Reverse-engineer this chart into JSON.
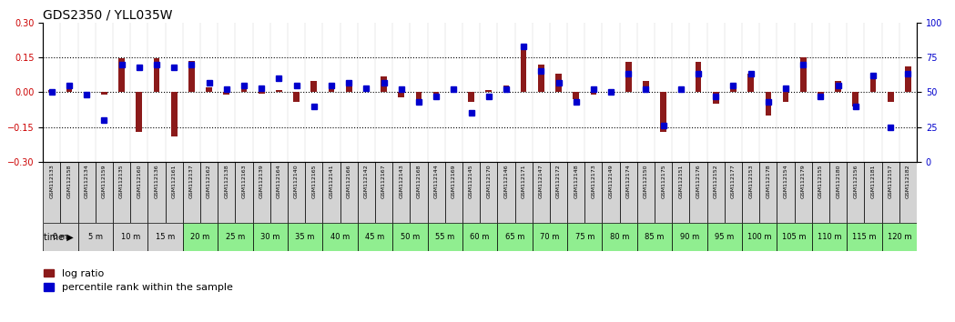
{
  "title": "GDS2350 / YLL035W",
  "xlabels": [
    "GSM112133",
    "GSM112158",
    "GSM112134",
    "GSM112159",
    "GSM112135",
    "GSM112160",
    "GSM112136",
    "GSM112161",
    "GSM112137",
    "GSM112162",
    "GSM112138",
    "GSM112163",
    "GSM112139",
    "GSM112164",
    "GSM112140",
    "GSM112165",
    "GSM112141",
    "GSM112166",
    "GSM112142",
    "GSM112167",
    "GSM112143",
    "GSM112168",
    "GSM112144",
    "GSM112169",
    "GSM112145",
    "GSM112170",
    "GSM112146",
    "GSM112171",
    "GSM112147",
    "GSM112172",
    "GSM112148",
    "GSM112173",
    "GSM112149",
    "GSM112174",
    "GSM112150",
    "GSM112175",
    "GSM112151",
    "GSM112176",
    "GSM112152",
    "GSM112177",
    "GSM112153",
    "GSM112178",
    "GSM112154",
    "GSM112179",
    "GSM112155",
    "GSM112180",
    "GSM112156",
    "GSM112181",
    "GSM112157",
    "GSM112182"
  ],
  "time_labels": [
    "0 m",
    "5 m",
    "10 m",
    "15 m",
    "20 m",
    "25 m",
    "30 m",
    "35 m",
    "40 m",
    "45 m",
    "50 m",
    "55 m",
    "60 m",
    "65 m",
    "70 m",
    "75 m",
    "80 m",
    "85 m",
    "90 m",
    "95 m",
    "100 m",
    "105 m",
    "110 m",
    "115 m",
    "120 m"
  ],
  "log_ratio": [
    0.01,
    0.04,
    -0.02,
    -0.01,
    0.145,
    -0.17,
    0.148,
    -0.19,
    0.135,
    0.02,
    -0.01,
    0.02,
    -0.005,
    0.01,
    -0.04,
    0.05,
    0.02,
    0.03,
    0.01,
    0.07,
    -0.02,
    -0.05,
    -0.01,
    0.01,
    -0.04,
    0.01,
    0.03,
    0.19,
    0.12,
    0.08,
    -0.03,
    -0.01,
    -0.01,
    0.13,
    0.05,
    -0.17,
    0.01,
    0.13,
    -0.05,
    0.04,
    0.08,
    -0.1,
    -0.04,
    0.15,
    -0.03,
    0.05,
    -0.06,
    0.08,
    -0.04,
    0.11
  ],
  "percentile": [
    50,
    55,
    48,
    30,
    70,
    68,
    70,
    68,
    70,
    57,
    52,
    55,
    53,
    60,
    55,
    40,
    55,
    57,
    53,
    57,
    52,
    43,
    47,
    52,
    35,
    47,
    52,
    83,
    65,
    57,
    43,
    52,
    50,
    63,
    52,
    26,
    52,
    63,
    47,
    55,
    63,
    43,
    53,
    70,
    47,
    55,
    40,
    62,
    25,
    63
  ],
  "ylim": [
    -0.3,
    0.3
  ],
  "y2lim": [
    0,
    100
  ],
  "yticks": [
    -0.3,
    -0.15,
    0.0,
    0.15,
    0.3
  ],
  "y2ticks": [
    0,
    25,
    50,
    75,
    100
  ],
  "hlines": [
    0.15,
    0.0,
    -0.15
  ],
  "bar_color": "#8B1A1A",
  "dot_color": "#0000CD",
  "bg_color": "#FFFFFF",
  "title_fontsize": 10,
  "tick_fontsize": 7,
  "legend_fontsize": 8,
  "time_bg_colors": [
    "#D3D3D3",
    "#D3D3D3",
    "#D3D3D3",
    "#D3D3D3",
    "#90EE90",
    "#90EE90",
    "#90EE90",
    "#90EE90",
    "#90EE90",
    "#90EE90",
    "#90EE90",
    "#90EE90",
    "#90EE90",
    "#90EE90",
    "#90EE90",
    "#90EE90",
    "#90EE90",
    "#90EE90",
    "#90EE90",
    "#90EE90",
    "#90EE90",
    "#90EE90",
    "#90EE90",
    "#90EE90",
    "#90EE90"
  ],
  "xlabel_bg": "#D3D3D3"
}
